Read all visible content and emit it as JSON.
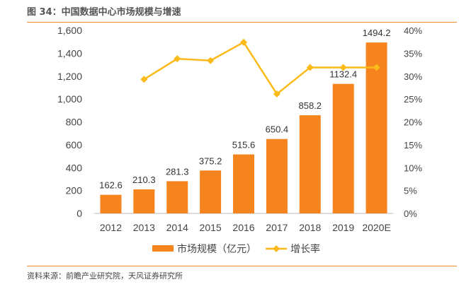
{
  "title": "图 34：中国数据中心市场规模与增速",
  "source": "资料来源：前瞻产业研究院，天风证券研究所",
  "colors": {
    "bar": "#F5841F",
    "line": "#FBBA18",
    "rule": "#F08B2A"
  },
  "chart_data": {
    "type": "bar+line",
    "categories": [
      "2012",
      "2013",
      "2014",
      "2015",
      "2016",
      "2017",
      "2018",
      "2019",
      "2020E"
    ],
    "series": [
      {
        "name": "市场规模（亿元）",
        "type": "bar",
        "axis": "left",
        "values": [
          162.6,
          210.3,
          281.3,
          375.2,
          515.6,
          650.4,
          858.2,
          1132.4,
          1494.2
        ],
        "labels": [
          "162.6",
          "210.3",
          "281.3",
          "375.2",
          "515.6",
          "650.4",
          "858.2",
          "1132.4",
          "1494.2"
        ]
      },
      {
        "name": "增长率",
        "type": "line",
        "axis": "right",
        "values": [
          null,
          29.3,
          33.8,
          33.4,
          37.4,
          26.1,
          31.9,
          31.9,
          31.9
        ]
      }
    ],
    "y_left": {
      "range": [
        0,
        1600
      ],
      "ticks": [
        "0",
        "200",
        "400",
        "600",
        "800",
        "1,000",
        "1,200",
        "1,400",
        "1,600"
      ]
    },
    "y_right": {
      "range": [
        0,
        40
      ],
      "ticks": [
        "0%",
        "5%",
        "10%",
        "15%",
        "20%",
        "25%",
        "30%",
        "35%",
        "40%"
      ]
    },
    "grid": false,
    "legend": "bottom"
  }
}
